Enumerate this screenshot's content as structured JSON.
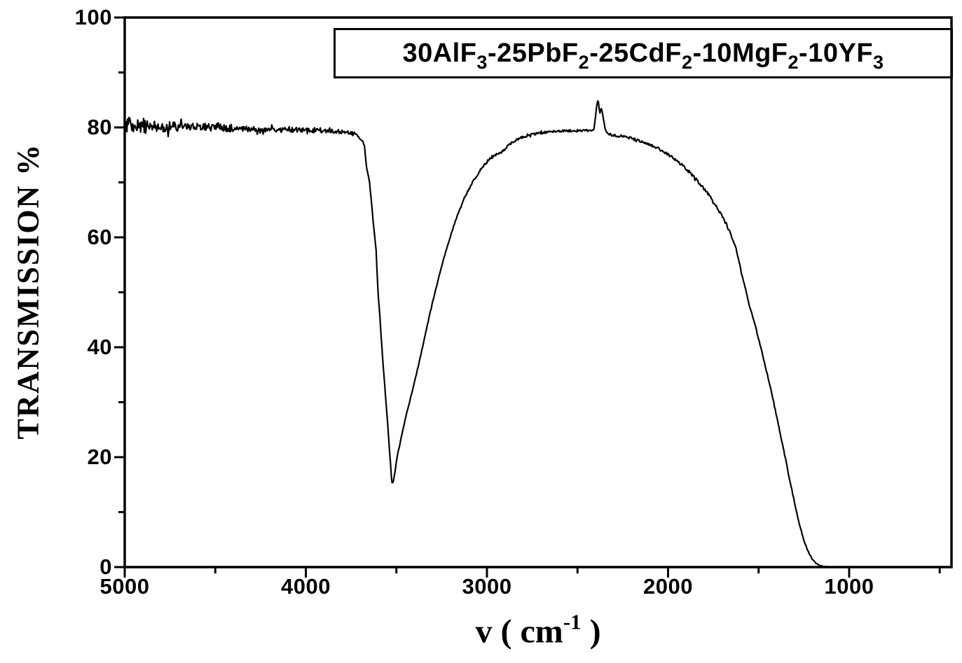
{
  "colors": {
    "foreground": "#000000",
    "background": "#ffffff"
  },
  "chart_title": {
    "boxed": true,
    "segments": [
      {
        "t": "30AlF"
      },
      {
        "t": "3",
        "sub": true
      },
      {
        "t": "-25PbF"
      },
      {
        "t": "2",
        "sub": true
      },
      {
        "t": "-25CdF"
      },
      {
        "t": "2",
        "sub": true
      },
      {
        "t": "-10MgF"
      },
      {
        "t": "2",
        "sub": true
      },
      {
        "t": "-10YF"
      },
      {
        "t": "3",
        "sub": true
      }
    ]
  },
  "axes": {
    "x": {
      "label_segments": [
        {
          "t": "v ( cm"
        },
        {
          "t": "-1",
          "sup": true
        },
        {
          "t": " )"
        }
      ],
      "range": [
        5000,
        435
      ],
      "reversed": true,
      "ticks_major": [
        {
          "v": 5000,
          "label": "5000"
        },
        {
          "v": 4000,
          "label": "4000"
        },
        {
          "v": 3000,
          "label": "3000"
        },
        {
          "v": 2000,
          "label": "2000"
        },
        {
          "v": 1000,
          "label": "1000"
        }
      ],
      "ticks_minor": [
        4500,
        3500,
        2500,
        1500,
        500
      ]
    },
    "y": {
      "label": "TRANSMISSION %",
      "range": [
        0,
        100
      ],
      "ticks_major": [
        {
          "v": 0,
          "label": "0"
        },
        {
          "v": 20,
          "label": "20"
        },
        {
          "v": 40,
          "label": "40"
        },
        {
          "v": 60,
          "label": "60"
        },
        {
          "v": 80,
          "label": "80"
        },
        {
          "v": 100,
          "label": "100"
        }
      ],
      "ticks_minor": [
        10,
        30,
        50,
        70,
        90
      ]
    }
  },
  "chart_data": {
    "type": "line",
    "title": "30AlF3-25PbF2-25CdF2-10MgF2-10YF3",
    "xlabel": "v ( cm-1 )",
    "ylabel": "TRANSMISSION %",
    "x_range": [
      5000,
      435
    ],
    "ylim": [
      0,
      100
    ],
    "x_axis_reversed": true,
    "grid": false,
    "legend": false,
    "line_color": "#000000",
    "line_width": 2.2,
    "features": {
      "plateau_left": "noisy plateau ~80% from 5000 to 3730 cm-1",
      "oh_absorption_dip": "minimum ~15% near 3525 cm-1",
      "mid_plateau": "~79% from 2700 to 2420 cm-1",
      "co2_spike": "sharp spike to ~85% near 2385 cm-1",
      "multiphonon_edge": "cutoff, 0% reached near 1150 cm-1"
    },
    "series": [
      {
        "name": "transmission",
        "points": [
          [
            5000,
            80.6
          ],
          [
            4950,
            80.5
          ],
          [
            4900,
            80.4
          ],
          [
            4850,
            80.3
          ],
          [
            4800,
            80.2
          ],
          [
            4750,
            80.2
          ],
          [
            4700,
            80.2
          ],
          [
            4650,
            80.2
          ],
          [
            4600,
            80.1
          ],
          [
            4550,
            80.0
          ],
          [
            4500,
            80.1
          ],
          [
            4450,
            79.9
          ],
          [
            4400,
            79.9
          ],
          [
            4350,
            79.8
          ],
          [
            4300,
            79.7
          ],
          [
            4250,
            79.7
          ],
          [
            4200,
            79.6
          ],
          [
            4150,
            79.6
          ],
          [
            4100,
            79.5
          ],
          [
            4050,
            79.6
          ],
          [
            4000,
            79.6
          ],
          [
            3950,
            79.5
          ],
          [
            3900,
            79.4
          ],
          [
            3850,
            79.3
          ],
          [
            3800,
            79.2
          ],
          [
            3770,
            79.1
          ],
          [
            3740,
            78.9
          ],
          [
            3725,
            78.8
          ],
          [
            3712,
            78.4
          ],
          [
            3700,
            77.9
          ],
          [
            3688,
            77.6
          ],
          [
            3676,
            76.6
          ],
          [
            3666,
            73.0
          ],
          [
            3650,
            70.5
          ],
          [
            3638,
            66.6
          ],
          [
            3627,
            62.4
          ],
          [
            3618,
            59.6
          ],
          [
            3612,
            57.7
          ],
          [
            3607,
            53.9
          ],
          [
            3600,
            49.3
          ],
          [
            3592,
            45.9
          ],
          [
            3585,
            42.5
          ],
          [
            3578,
            39.0
          ],
          [
            3570,
            35.5
          ],
          [
            3562,
            32.0
          ],
          [
            3555,
            29.0
          ],
          [
            3548,
            26.0
          ],
          [
            3542,
            23.2
          ],
          [
            3536,
            20.4
          ],
          [
            3531,
            18.0
          ],
          [
            3527,
            16.2
          ],
          [
            3523,
            15.2
          ],
          [
            3519,
            15.4
          ],
          [
            3514,
            16.1
          ],
          [
            3509,
            17.0
          ],
          [
            3503,
            18.3
          ],
          [
            3497,
            19.8
          ],
          [
            3490,
            21.0
          ],
          [
            3480,
            22.5
          ],
          [
            3470,
            24.0
          ],
          [
            3460,
            25.5
          ],
          [
            3450,
            27.0
          ],
          [
            3435,
            29.0
          ],
          [
            3420,
            31.0
          ],
          [
            3405,
            33.0
          ],
          [
            3390,
            35.0
          ],
          [
            3375,
            37.2
          ],
          [
            3360,
            39.4
          ],
          [
            3345,
            41.7
          ],
          [
            3330,
            43.9
          ],
          [
            3315,
            46.1
          ],
          [
            3300,
            48.2
          ],
          [
            3285,
            50.2
          ],
          [
            3270,
            52.2
          ],
          [
            3255,
            54.1
          ],
          [
            3240,
            55.9
          ],
          [
            3225,
            57.6
          ],
          [
            3210,
            59.3
          ],
          [
            3195,
            60.9
          ],
          [
            3180,
            62.4
          ],
          [
            3165,
            63.8
          ],
          [
            3150,
            65.1
          ],
          [
            3135,
            66.3
          ],
          [
            3120,
            67.4
          ],
          [
            3105,
            68.4
          ],
          [
            3090,
            69.4
          ],
          [
            3075,
            70.3
          ],
          [
            3060,
            71.1
          ],
          [
            3045,
            71.8
          ],
          [
            3030,
            72.5
          ],
          [
            3015,
            73.1
          ],
          [
            3000,
            73.7
          ],
          [
            2985,
            74.2
          ],
          [
            2970,
            74.6
          ],
          [
            2955,
            74.9
          ],
          [
            2945,
            75.1
          ],
          [
            2935,
            75.2
          ],
          [
            2925,
            75.4
          ],
          [
            2910,
            75.8
          ],
          [
            2895,
            76.3
          ],
          [
            2880,
            76.8
          ],
          [
            2865,
            77.2
          ],
          [
            2850,
            77.5
          ],
          [
            2830,
            77.9
          ],
          [
            2810,
            78.1
          ],
          [
            2790,
            78.4
          ],
          [
            2770,
            78.6
          ],
          [
            2750,
            78.8
          ],
          [
            2725,
            78.9
          ],
          [
            2700,
            79.0
          ],
          [
            2675,
            79.1
          ],
          [
            2650,
            79.2
          ],
          [
            2620,
            79.3
          ],
          [
            2590,
            79.3
          ],
          [
            2550,
            79.4
          ],
          [
            2500,
            79.4
          ],
          [
            2460,
            79.4
          ],
          [
            2430,
            79.4
          ],
          [
            2415,
            79.4
          ],
          [
            2408,
            79.9
          ],
          [
            2402,
            81.6
          ],
          [
            2396,
            83.3
          ],
          [
            2391,
            84.6
          ],
          [
            2386,
            85.3
          ],
          [
            2381,
            83.4
          ],
          [
            2376,
            82.7
          ],
          [
            2370,
            83.6
          ],
          [
            2364,
            82.9
          ],
          [
            2357,
            81.5
          ],
          [
            2350,
            80.2
          ],
          [
            2343,
            79.4
          ],
          [
            2335,
            78.9
          ],
          [
            2326,
            78.7
          ],
          [
            2315,
            78.6
          ],
          [
            2300,
            78.6
          ],
          [
            2280,
            78.5
          ],
          [
            2260,
            78.4
          ],
          [
            2240,
            78.3
          ],
          [
            2220,
            78.2
          ],
          [
            2200,
            78.0
          ],
          [
            2180,
            77.8
          ],
          [
            2160,
            77.6
          ],
          [
            2140,
            77.4
          ],
          [
            2120,
            77.2
          ],
          [
            2100,
            76.9
          ],
          [
            2080,
            76.6
          ],
          [
            2060,
            76.3
          ],
          [
            2040,
            75.9
          ],
          [
            2020,
            75.5
          ],
          [
            2000,
            75.1
          ],
          [
            1980,
            74.7
          ],
          [
            1960,
            74.2
          ],
          [
            1940,
            73.7
          ],
          [
            1920,
            73.1
          ],
          [
            1900,
            72.5
          ],
          [
            1880,
            71.8
          ],
          [
            1860,
            71.1
          ],
          [
            1840,
            70.4
          ],
          [
            1820,
            69.6
          ],
          [
            1800,
            68.8
          ],
          [
            1780,
            67.9
          ],
          [
            1760,
            67.0
          ],
          [
            1740,
            66.0
          ],
          [
            1720,
            64.9
          ],
          [
            1700,
            63.7
          ],
          [
            1685,
            62.8
          ],
          [
            1670,
            61.8
          ],
          [
            1655,
            60.6
          ],
          [
            1640,
            59.4
          ],
          [
            1627,
            58.2
          ],
          [
            1612,
            56.2
          ],
          [
            1598,
            54.0
          ],
          [
            1588,
            52.6
          ],
          [
            1576,
            51.0
          ],
          [
            1564,
            49.4
          ],
          [
            1552,
            47.7
          ],
          [
            1540,
            46.4
          ],
          [
            1530,
            45.2
          ],
          [
            1519,
            44.0
          ],
          [
            1505,
            42.2
          ],
          [
            1490,
            40.2
          ],
          [
            1475,
            38.2
          ],
          [
            1460,
            36.2
          ],
          [
            1453,
            35.3
          ],
          [
            1440,
            33.4
          ],
          [
            1425,
            31.2
          ],
          [
            1410,
            28.9
          ],
          [
            1395,
            26.6
          ],
          [
            1380,
            24.2
          ],
          [
            1368,
            22.3
          ],
          [
            1355,
            20.2
          ],
          [
            1340,
            17.8
          ],
          [
            1325,
            15.4
          ],
          [
            1310,
            13.0
          ],
          [
            1295,
            10.7
          ],
          [
            1280,
            8.5
          ],
          [
            1265,
            6.6
          ],
          [
            1250,
            4.9
          ],
          [
            1235,
            3.5
          ],
          [
            1220,
            2.4
          ],
          [
            1205,
            1.5
          ],
          [
            1190,
            0.9
          ],
          [
            1175,
            0.5
          ],
          [
            1160,
            0.3
          ],
          [
            1145,
            0.15
          ],
          [
            1125,
            0.05
          ],
          [
            1100,
            0
          ],
          [
            1050,
            0
          ],
          [
            1000,
            0
          ],
          [
            950,
            0
          ],
          [
            900,
            0
          ],
          [
            850,
            0
          ],
          [
            800,
            0
          ],
          [
            750,
            0
          ],
          [
            700,
            0
          ],
          [
            650,
            0
          ],
          [
            600,
            0
          ],
          [
            550,
            0
          ],
          [
            500,
            0
          ],
          [
            460,
            0
          ],
          [
            435,
            0
          ]
        ]
      }
    ],
    "noise_zones": [
      {
        "from": 5000,
        "to": 4870,
        "amp": 1.5
      },
      {
        "from": 4870,
        "to": 4700,
        "amp": 1.0
      },
      {
        "from": 4700,
        "to": 4400,
        "amp": 0.7
      },
      {
        "from": 4400,
        "to": 3900,
        "amp": 0.5
      },
      {
        "from": 3900,
        "to": 3730,
        "amp": 0.35
      },
      {
        "from": 3730,
        "to": 3520,
        "amp": 0.12
      },
      {
        "from": 3520,
        "to": 3150,
        "amp": 0.12
      },
      {
        "from": 3150,
        "to": 2430,
        "amp": 0.22
      },
      {
        "from": 2430,
        "to": 2320,
        "amp": 0.12
      },
      {
        "from": 2320,
        "to": 1650,
        "amp": 0.25
      },
      {
        "from": 1650,
        "to": 1300,
        "amp": 0.18
      },
      {
        "from": 1300,
        "to": 1150,
        "amp": 0.08
      },
      {
        "from": 1150,
        "to": 435,
        "amp": 0.02
      }
    ]
  }
}
